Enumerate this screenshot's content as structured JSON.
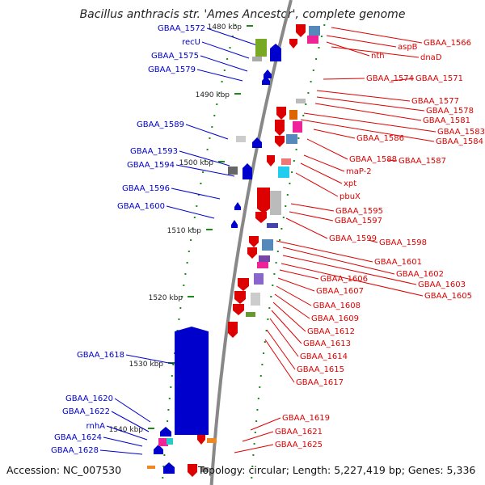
{
  "title": "Bacillus anthracis str. 'Ames Ancestor', complete genome",
  "footer": {
    "accession": "Accession: NC_007530",
    "topology": "Topology: circular; Length: 5,227,419 bp; Genes: 5,336"
  },
  "colors": {
    "left_strand": "#0000cc",
    "right_strand": "#dd0000",
    "axis": "#888888",
    "dots": "#1a8a1a"
  },
  "ticks": [
    "1480 kbp",
    "1490 kbp",
    "1500 kbp",
    "1510 kbp",
    "1520 kbp",
    "1530 kbp",
    "1540 kbp"
  ],
  "left_labels": [
    "GBAA_1572",
    "recU",
    "GBAA_1575",
    "GBAA_1579",
    "GBAA_1589",
    "GBAA_1593",
    "GBAA_1594",
    "GBAA_1596",
    "GBAA_1600",
    "GBAA_1618",
    "GBAA_1620",
    "GBAA_1622",
    "rnhA",
    "GBAA_1624",
    "GBAA_1628"
  ],
  "right_labels": [
    "GBAA_1566",
    "aspB",
    "nth",
    "dnaD",
    "GBAA_1574",
    "GBAA_1571",
    "GBAA_1577",
    "GBAA_1578",
    "GBAA_1581",
    "GBAA_1583",
    "GBAA_1584",
    "GBAA_1586",
    "GBAA_1588",
    "GBAA_1587",
    "maP-2",
    "xpt",
    "pbuX",
    "GBAA_1595",
    "GBAA_1597",
    "GBAA_1599",
    "GBAA_1598",
    "GBAA_1601",
    "GBAA_1602",
    "GBAA_1603",
    "GBAA_1605",
    "GBAA_1606",
    "GBAA_1607",
    "GBAA_1608",
    "GBAA_1609",
    "GBAA_1612",
    "GBAA_1613",
    "GBAA_1614",
    "GBAA_1615",
    "GBAA_1617",
    "GBAA_1619",
    "GBAA_1621",
    "GBAA_1625"
  ]
}
